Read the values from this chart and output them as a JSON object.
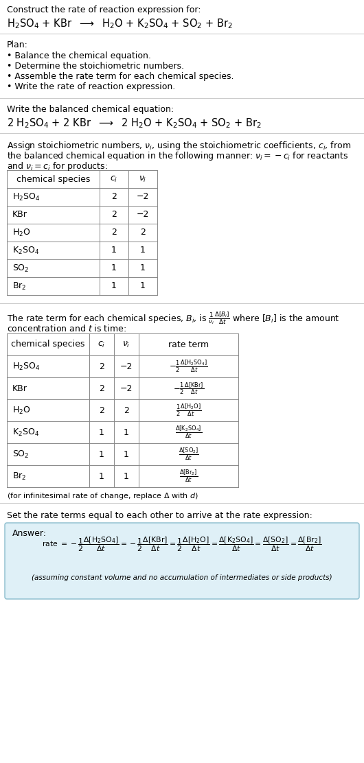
{
  "title_line1": "Construct the rate of reaction expression for:",
  "plan_header": "Plan:",
  "plan_items": [
    "• Balance the chemical equation.",
    "• Determine the stoichiometric numbers.",
    "• Assemble the rate term for each chemical species.",
    "• Write the rate of reaction expression."
  ],
  "balanced_header": "Write the balanced chemical equation:",
  "table1_headers_ci": "$c_i$",
  "table1_headers_vi": "$\\nu_i$",
  "table1_data": [
    [
      "$\\mathrm{H_2SO_4}$",
      "2",
      "−2"
    ],
    [
      "KBr",
      "2",
      "−2"
    ],
    [
      "$\\mathrm{H_2O}$",
      "2",
      "2"
    ],
    [
      "$\\mathrm{K_2SO_4}$",
      "1",
      "1"
    ],
    [
      "$\\mathrm{SO_2}$",
      "1",
      "1"
    ],
    [
      "$\\mathrm{Br_2}$",
      "1",
      "1"
    ]
  ],
  "table2_data": [
    [
      "$\\mathrm{H_2SO_4}$",
      "2",
      "−2",
      "$-\\frac{1}{2}\\frac{\\Delta[\\mathrm{H_2SO_4}]}{\\Delta t}$"
    ],
    [
      "KBr",
      "2",
      "−2",
      "$-\\frac{1}{2}\\frac{\\Delta[\\mathrm{KBr}]}{\\Delta t}$"
    ],
    [
      "$\\mathrm{H_2O}$",
      "2",
      "2",
      "$\\frac{1}{2}\\frac{\\Delta[\\mathrm{H_2O}]}{\\Delta t}$"
    ],
    [
      "$\\mathrm{K_2SO_4}$",
      "1",
      "1",
      "$\\frac{\\Delta[\\mathrm{K_2SO_4}]}{\\Delta t}$"
    ],
    [
      "$\\mathrm{SO_2}$",
      "1",
      "1",
      "$\\frac{\\Delta[\\mathrm{SO_2}]}{\\Delta t}$"
    ],
    [
      "$\\mathrm{Br_2}$",
      "1",
      "1",
      "$\\frac{\\Delta[\\mathrm{Br_2}]}{\\Delta t}$"
    ]
  ],
  "infinitesimal_note": "(for infinitesimal rate of change, replace Δ with $d$)",
  "set_equal_text": "Set the rate terms equal to each other to arrive at the rate expression:",
  "answer_label": "Answer:",
  "answer_box_facecolor": "#dff0f7",
  "answer_box_edgecolor": "#88bbcc",
  "footnote": "(assuming constant volume and no accumulation of intermediates or side products)",
  "bg_color": "#ffffff",
  "table_color": "#888888",
  "fs": 9.0,
  "fs_eq": 10.5,
  "fs_small": 8.0
}
